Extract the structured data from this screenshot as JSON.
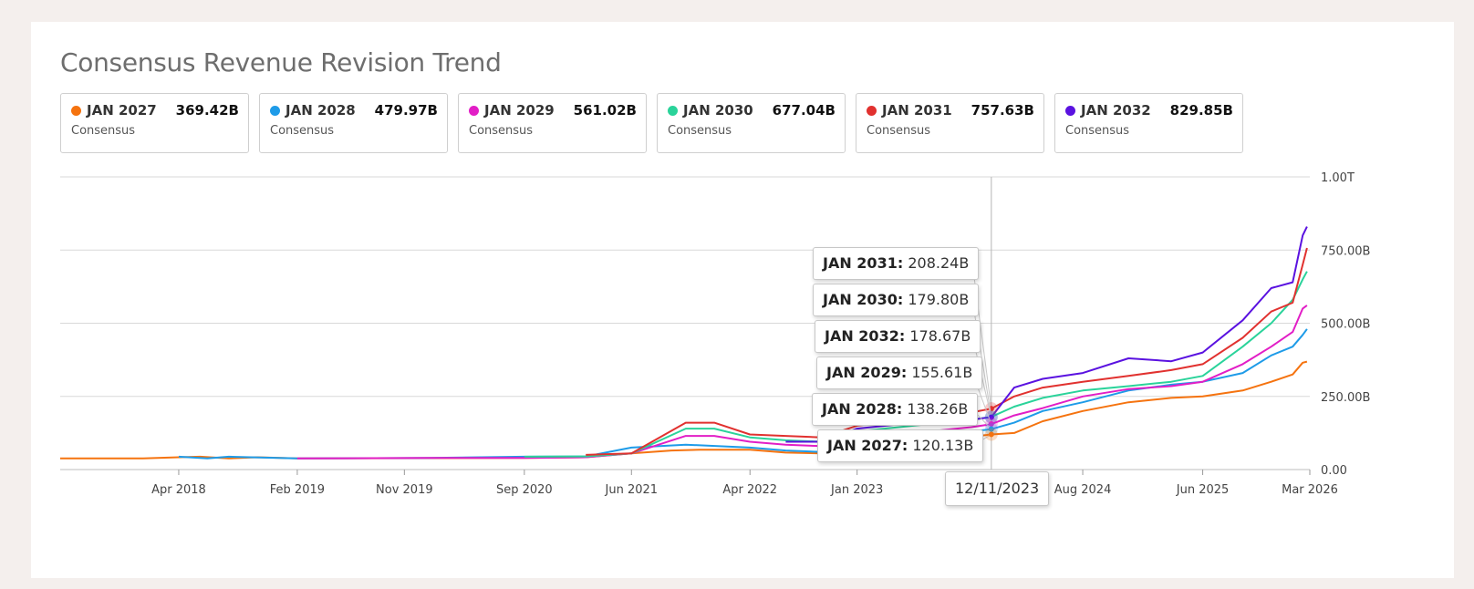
{
  "title": "Consensus Revenue Revision Trend",
  "legend": [
    {
      "name": "JAN 2027",
      "value": "369.42B",
      "sub": "Consensus",
      "color": "#f5730f"
    },
    {
      "name": "JAN 2028",
      "value": "479.97B",
      "sub": "Consensus",
      "color": "#1e9be8"
    },
    {
      "name": "JAN 2029",
      "value": "561.02B",
      "sub": "Consensus",
      "color": "#e21ec6"
    },
    {
      "name": "JAN 2030",
      "value": "677.04B",
      "sub": "Consensus",
      "color": "#2ad39a"
    },
    {
      "name": "JAN 2031",
      "value": "757.63B",
      "sub": "Consensus",
      "color": "#e1312f"
    },
    {
      "name": "JAN 2032",
      "value": "829.85B",
      "sub": "Consensus",
      "color": "#5a12e0"
    }
  ],
  "tooltips": [
    {
      "name": "JAN 2031",
      "value": "208.24B"
    },
    {
      "name": "JAN 2030",
      "value": "179.80B"
    },
    {
      "name": "JAN 2032",
      "value": "178.67B"
    },
    {
      "name": "JAN 2029",
      "value": "155.61B"
    },
    {
      "name": "JAN 2028",
      "value": "138.26B"
    },
    {
      "name": "JAN 2027",
      "value": "120.13B"
    }
  ],
  "crosshair_date": "12/11/2023",
  "chart_data": {
    "type": "line",
    "xlabel": "",
    "ylabel": "",
    "y_ticks": [
      "0.00",
      "250.00B",
      "500.00B",
      "750.00B",
      "1.00T"
    ],
    "y_tick_values": [
      0,
      250,
      500,
      750,
      1000
    ],
    "ylim": [
      0,
      1000
    ],
    "y_unit": "B",
    "x_ticks": [
      {
        "label": "Apr 2018",
        "t": 2018.25
      },
      {
        "label": "Feb 2019",
        "t": 2019.08
      },
      {
        "label": "Nov 2019",
        "t": 2019.83
      },
      {
        "label": "Sep 2020",
        "t": 2020.67
      },
      {
        "label": "Jun 2021",
        "t": 2021.42
      },
      {
        "label": "Apr 2022",
        "t": 2022.25
      },
      {
        "label": "Jan 2023",
        "t": 2023.0
      },
      {
        "label": "Aug 2024",
        "t": 2024.58
      },
      {
        "label": "Jun 2025",
        "t": 2025.42
      },
      {
        "label": "Mar 2026",
        "t": 2026.17
      }
    ],
    "xlim": [
      2017.42,
      2026.17
    ],
    "crosshair_t": 2023.94,
    "grid": true,
    "series": [
      {
        "name": "JAN 2027",
        "color": "#f5730f",
        "points": [
          [
            2017.42,
            38
          ],
          [
            2018.0,
            38
          ],
          [
            2018.25,
            42
          ],
          [
            2018.4,
            44
          ],
          [
            2018.6,
            38
          ],
          [
            2018.8,
            42
          ],
          [
            2019.08,
            38
          ],
          [
            2020.0,
            39
          ],
          [
            2020.67,
            40
          ],
          [
            2021.1,
            42
          ],
          [
            2021.42,
            55
          ],
          [
            2021.7,
            65
          ],
          [
            2021.9,
            68
          ],
          [
            2022.25,
            68
          ],
          [
            2022.5,
            58
          ],
          [
            2022.75,
            55
          ],
          [
            2023.0,
            80
          ],
          [
            2023.5,
            100
          ],
          [
            2023.8,
            112
          ],
          [
            2023.94,
            120
          ],
          [
            2024.1,
            125
          ],
          [
            2024.3,
            165
          ],
          [
            2024.58,
            200
          ],
          [
            2024.9,
            230
          ],
          [
            2025.2,
            245
          ],
          [
            2025.42,
            250
          ],
          [
            2025.7,
            270
          ],
          [
            2025.9,
            300
          ],
          [
            2026.05,
            325
          ],
          [
            2026.12,
            365
          ],
          [
            2026.15,
            369
          ]
        ]
      },
      {
        "name": "JAN 2028",
        "color": "#1e9be8",
        "points": [
          [
            2018.25,
            44
          ],
          [
            2018.45,
            38
          ],
          [
            2018.6,
            44
          ],
          [
            2019.08,
            38
          ],
          [
            2020.0,
            40
          ],
          [
            2020.67,
            44
          ],
          [
            2021.1,
            45
          ],
          [
            2021.42,
            75
          ],
          [
            2021.8,
            85
          ],
          [
            2022.25,
            75
          ],
          [
            2022.5,
            65
          ],
          [
            2022.75,
            60
          ],
          [
            2023.0,
            90
          ],
          [
            2023.5,
            115
          ],
          [
            2023.8,
            130
          ],
          [
            2023.94,
            138
          ],
          [
            2024.1,
            160
          ],
          [
            2024.3,
            200
          ],
          [
            2024.58,
            230
          ],
          [
            2024.9,
            270
          ],
          [
            2025.2,
            290
          ],
          [
            2025.42,
            300
          ],
          [
            2025.7,
            330
          ],
          [
            2025.9,
            390
          ],
          [
            2026.05,
            420
          ],
          [
            2026.12,
            460
          ],
          [
            2026.15,
            480
          ]
        ]
      },
      {
        "name": "JAN 2029",
        "color": "#e21ec6",
        "points": [
          [
            2019.08,
            38
          ],
          [
            2020.0,
            40
          ],
          [
            2020.67,
            40
          ],
          [
            2021.1,
            42
          ],
          [
            2021.42,
            55
          ],
          [
            2021.8,
            115
          ],
          [
            2022.0,
            115
          ],
          [
            2022.25,
            95
          ],
          [
            2022.5,
            85
          ],
          [
            2022.75,
            80
          ],
          [
            2023.0,
            110
          ],
          [
            2023.5,
            130
          ],
          [
            2023.8,
            145
          ],
          [
            2023.94,
            155
          ],
          [
            2024.1,
            185
          ],
          [
            2024.3,
            210
          ],
          [
            2024.58,
            250
          ],
          [
            2024.9,
            275
          ],
          [
            2025.2,
            285
          ],
          [
            2025.42,
            300
          ],
          [
            2025.7,
            360
          ],
          [
            2025.9,
            420
          ],
          [
            2026.05,
            470
          ],
          [
            2026.12,
            550
          ],
          [
            2026.15,
            561
          ]
        ]
      },
      {
        "name": "JAN 2030",
        "color": "#2ad39a",
        "points": [
          [
            2020.67,
            44
          ],
          [
            2021.1,
            45
          ],
          [
            2021.42,
            55
          ],
          [
            2021.8,
            140
          ],
          [
            2022.0,
            140
          ],
          [
            2022.25,
            110
          ],
          [
            2022.5,
            100
          ],
          [
            2022.75,
            95
          ],
          [
            2023.0,
            130
          ],
          [
            2023.5,
            155
          ],
          [
            2023.8,
            170
          ],
          [
            2023.94,
            180
          ],
          [
            2024.1,
            215
          ],
          [
            2024.3,
            245
          ],
          [
            2024.58,
            270
          ],
          [
            2024.9,
            285
          ],
          [
            2025.2,
            300
          ],
          [
            2025.42,
            320
          ],
          [
            2025.7,
            420
          ],
          [
            2025.9,
            500
          ],
          [
            2026.05,
            580
          ],
          [
            2026.12,
            650
          ],
          [
            2026.15,
            677
          ]
        ]
      },
      {
        "name": "JAN 2031",
        "color": "#e1312f",
        "points": [
          [
            2021.1,
            50
          ],
          [
            2021.42,
            55
          ],
          [
            2021.8,
            160
          ],
          [
            2022.0,
            160
          ],
          [
            2022.25,
            120
          ],
          [
            2022.5,
            115
          ],
          [
            2022.75,
            110
          ],
          [
            2023.0,
            150
          ],
          [
            2023.5,
            180
          ],
          [
            2023.8,
            195
          ],
          [
            2023.94,
            208
          ],
          [
            2024.1,
            250
          ],
          [
            2024.3,
            280
          ],
          [
            2024.58,
            300
          ],
          [
            2024.9,
            320
          ],
          [
            2025.2,
            340
          ],
          [
            2025.42,
            360
          ],
          [
            2025.7,
            450
          ],
          [
            2025.9,
            540
          ],
          [
            2026.05,
            570
          ],
          [
            2026.12,
            700
          ],
          [
            2026.15,
            757
          ]
        ]
      },
      {
        "name": "JAN 2032",
        "color": "#5a12e0",
        "points": [
          [
            2022.5,
            95
          ],
          [
            2022.75,
            95
          ],
          [
            2023.0,
            140
          ],
          [
            2023.5,
            165
          ],
          [
            2023.8,
            170
          ],
          [
            2023.94,
            179
          ],
          [
            2024.1,
            280
          ],
          [
            2024.3,
            310
          ],
          [
            2024.58,
            330
          ],
          [
            2024.9,
            380
          ],
          [
            2025.2,
            370
          ],
          [
            2025.42,
            400
          ],
          [
            2025.7,
            510
          ],
          [
            2025.9,
            620
          ],
          [
            2026.05,
            640
          ],
          [
            2026.12,
            800
          ],
          [
            2026.15,
            830
          ]
        ]
      }
    ]
  }
}
